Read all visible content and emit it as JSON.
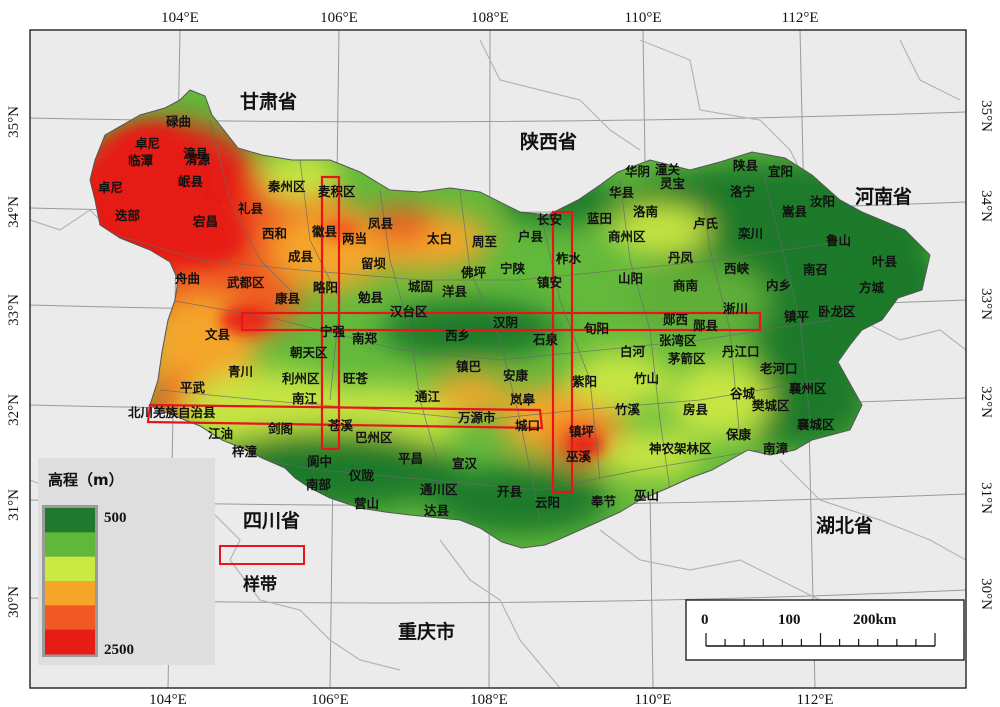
{
  "map": {
    "lon_ticks": [
      "104°E",
      "106°E",
      "108°E",
      "110°E",
      "112°E"
    ],
    "lat_ticks": [
      "35°N",
      "34°N",
      "33°N",
      "32°N",
      "31°N",
      "30°N"
    ],
    "provinces": [
      {
        "name": "甘肃省"
      },
      {
        "name": "陕西省"
      },
      {
        "name": "河南省"
      },
      {
        "name": "四川省"
      },
      {
        "name": "湖北省"
      },
      {
        "name": "重庆市"
      }
    ],
    "counties": [
      "卓尼",
      "碌曲",
      "临潭",
      "渭源",
      "漳县",
      "岷县",
      "卓尼",
      "迭部",
      "宕昌",
      "礼县",
      "秦州区",
      "麦积区",
      "凤县",
      "西和",
      "徽县",
      "两当",
      "太白",
      "周至",
      "户县",
      "长安",
      "蓝田",
      "华阴",
      "潼关",
      "华县",
      "灵宝",
      "陕县",
      "宜阳",
      "洛宁",
      "洛南",
      "卢氏",
      "商州区",
      "嵩县",
      "汝阳",
      "栾川",
      "鲁山",
      "叶县",
      "成县",
      "留坝",
      "佛坪",
      "宁陕",
      "柞水",
      "丹凤",
      "西峡",
      "南召",
      "方城",
      "舟曲",
      "武都区",
      "康县",
      "略阳",
      "勉县",
      "城固",
      "洋县",
      "镇安",
      "山阳",
      "商南",
      "内乡",
      "镇平",
      "卧龙区",
      "淅川",
      "汉台区",
      "宁强",
      "南郑",
      "西乡",
      "汉阴",
      "旬阳",
      "郧西",
      "郧县",
      "文县",
      "朝天区",
      "镇巴",
      "石泉",
      "安康",
      "白河",
      "张湾区",
      "茅箭区",
      "丹江口",
      "老河口",
      "青川",
      "利州区",
      "旺苍",
      "紫阳",
      "平武",
      "岚皋",
      "竹山",
      "房县",
      "谷城",
      "襄州区",
      "樊城区",
      "南江",
      "通江",
      "北川羌族自治县",
      "万源市",
      "竹溪",
      "保康",
      "襄城区",
      "江油",
      "剑阁",
      "苍溪",
      "巴州区",
      "城口",
      "镇坪",
      "神农架林区",
      "南漳",
      "梓潼",
      "阆中",
      "平昌",
      "宣汉",
      "巫溪",
      "南部",
      "仪陇",
      "通川区",
      "开县",
      "营山",
      "达县",
      "云阳",
      "奉节",
      "巫山"
    ],
    "band_colors": [
      "#1e7a2c",
      "#63b93c",
      "#c6e542",
      "#f4a62c",
      "#ee5a22",
      "#e61e14"
    ]
  },
  "legend": {
    "title": "高程（m）",
    "min_label": "500",
    "max_label": "2500",
    "colors": [
      "#1f7a2e",
      "#5fb83a",
      "#cbe843",
      "#f5a629",
      "#f05a22",
      "#e81c16"
    ]
  },
  "transect_legend": {
    "label": "样带"
  },
  "scale_bar": {
    "labels": [
      "0",
      "100",
      "200km"
    ]
  }
}
